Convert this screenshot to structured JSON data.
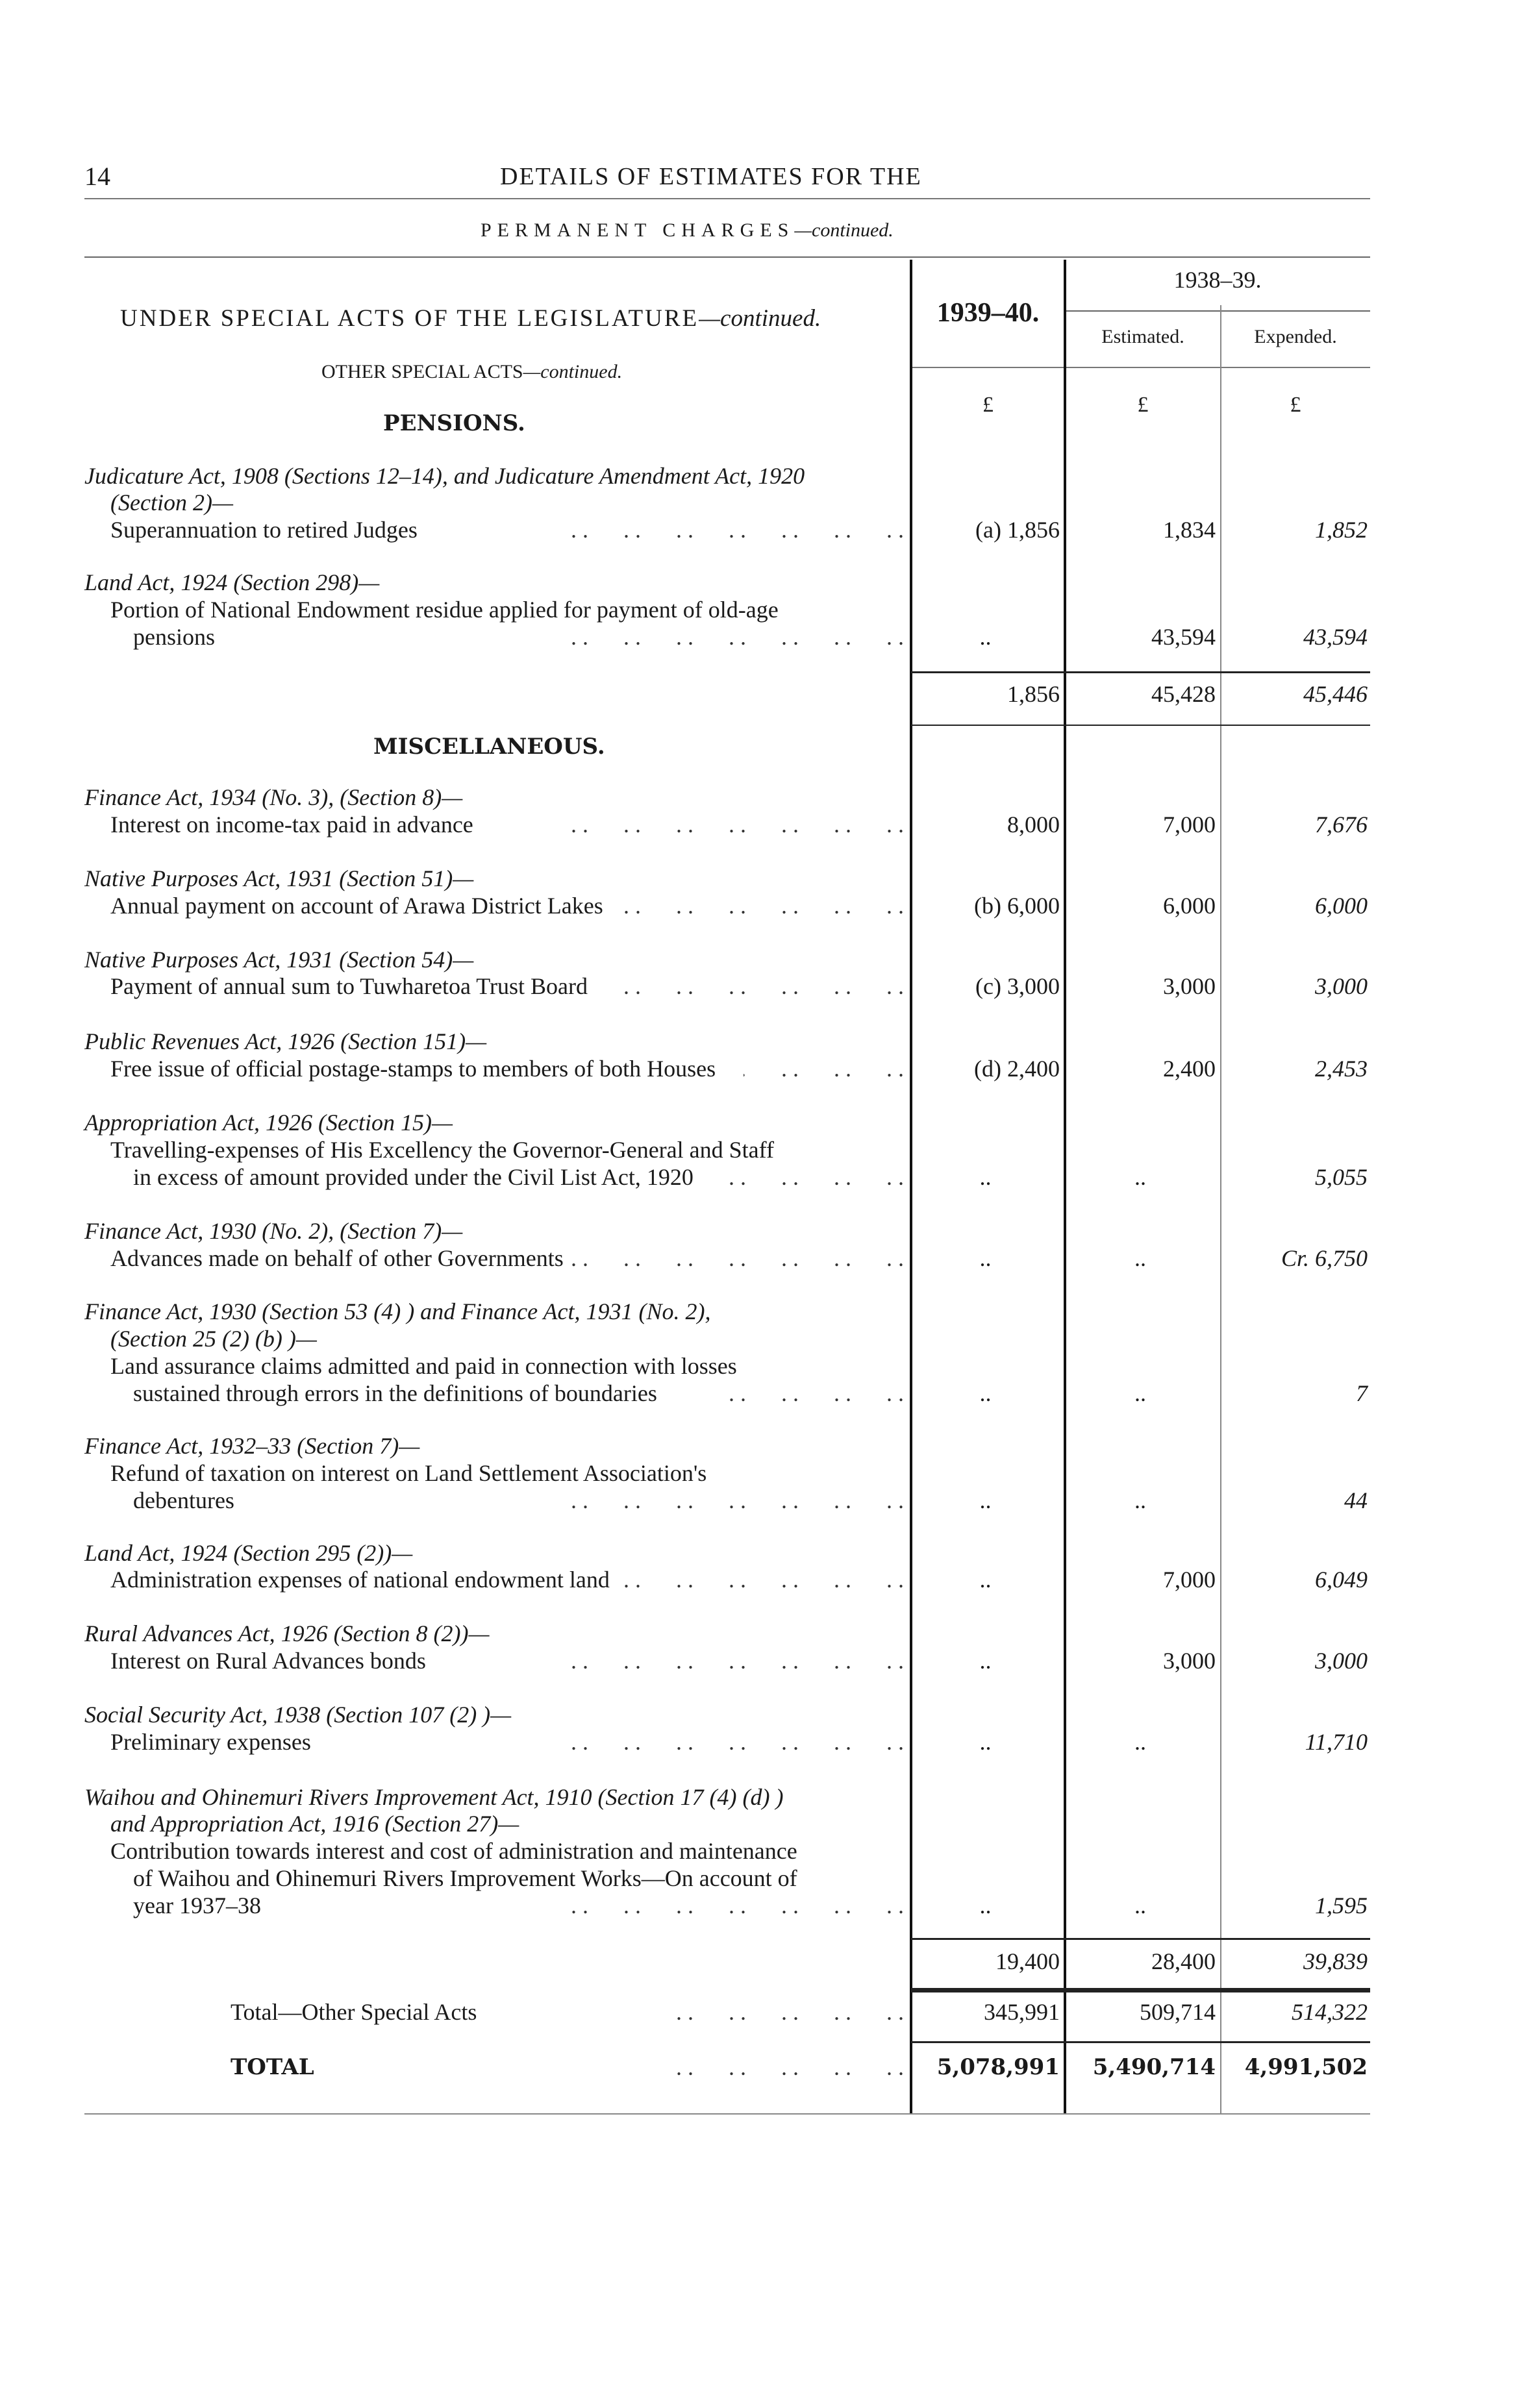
{
  "page": {
    "number": "14",
    "running_title": "DETAILS OF ESTIMATES FOR THE",
    "section_title": "PERMANENT CHARGES",
    "section_suffix": "—continued."
  },
  "table_header": {
    "left_title": "UNDER SPECIAL ACTS OF THE LEGISLATURE",
    "left_title_suffix": "—continued.",
    "col_current": "1939–40.",
    "col_prev_group": "1938–39.",
    "col_estimated": "Estimated.",
    "col_expended": "Expended.",
    "currency": "£",
    "subheading": "OTHER SPECIAL ACTS",
    "subheading_suffix": "—continued."
  },
  "sections": [
    {
      "heading": "PENSIONS."
    },
    {
      "heading": "MISCELLANEOUS."
    }
  ],
  "entries": [
    {
      "act": [
        "Judicature Act, 1908 (Sections 12–14), and Judicature Amendment Act, 1920",
        "(Section 2)—"
      ],
      "desc": [
        "Superannuation to retired Judges"
      ],
      "v1939": "(a) 1,856",
      "est": "1,834",
      "exp": "1,852"
    },
    {
      "act": [
        "Land Act, 1924 (Section 298)—"
      ],
      "desc": [
        "Portion of National Endowment residue applied for payment of old-age",
        "pensions"
      ],
      "v1939": "..",
      "est": "43,594",
      "exp": "43,594"
    },
    {
      "act": [
        "Finance Act, 1934 (No. 3), (Section 8)—"
      ],
      "desc": [
        "Interest on income-tax paid in advance"
      ],
      "v1939": "8,000",
      "est": "7,000",
      "exp": "7,676"
    },
    {
      "act": [
        "Native Purposes Act, 1931 (Section 51)—"
      ],
      "desc": [
        "Annual payment on account of Arawa District Lakes"
      ],
      "v1939": "(b) 6,000",
      "est": "6,000",
      "exp": "6,000"
    },
    {
      "act": [
        "Native Purposes Act, 1931 (Section 54)—"
      ],
      "desc": [
        "Payment of annual sum to Tuwharetoa Trust Board"
      ],
      "v1939": "(c) 3,000",
      "est": "3,000",
      "exp": "3,000"
    },
    {
      "act": [
        "Public Revenues Act, 1926 (Section 151)—"
      ],
      "desc": [
        "Free issue of official postage-stamps to members of both Houses"
      ],
      "v1939": "(d) 2,400",
      "est": "2,400",
      "exp": "2,453"
    },
    {
      "act": [
        "Appropriation Act, 1926 (Section 15)—"
      ],
      "desc": [
        "Travelling-expenses of His Excellency the Governor-General and Staff",
        "in excess of amount provided under the Civil List Act, 1920"
      ],
      "v1939": "..",
      "est": "..",
      "exp": "5,055"
    },
    {
      "act": [
        "Finance Act, 1930 (No. 2), (Section 7)—"
      ],
      "desc": [
        "Advances made on behalf of other Governments"
      ],
      "v1939": "..",
      "est": "..",
      "exp": "Cr. 6,750"
    },
    {
      "act": [
        "Finance Act, 1930 (Section 53 (4) ) and Finance Act, 1931 (No. 2),",
        "(Section 25 (2) (b) )—"
      ],
      "desc": [
        "Land assurance claims admitted and paid in connection with losses",
        "sustained through errors in the definitions of boundaries"
      ],
      "v1939": "..",
      "est": "..",
      "exp": "7"
    },
    {
      "act": [
        "Finance Act, 1932–33 (Section 7)—"
      ],
      "desc": [
        "Refund of taxation on interest on Land Settlement Association's",
        "debentures"
      ],
      "v1939": "..",
      "est": "..",
      "exp": "44"
    },
    {
      "act": [
        "Land Act, 1924 (Section 295 (2))—"
      ],
      "desc": [
        "Administration expenses of national endowment land"
      ],
      "v1939": "..",
      "est": "7,000",
      "exp": "6,049"
    },
    {
      "act": [
        "Rural Advances Act, 1926 (Section 8 (2))—"
      ],
      "desc": [
        "Interest on Rural Advances bonds"
      ],
      "v1939": "..",
      "est": "3,000",
      "exp": "3,000"
    },
    {
      "act": [
        "Social Security Act, 1938 (Section 107 (2) )—"
      ],
      "desc": [
        "Preliminary expenses"
      ],
      "v1939": "..",
      "est": "..",
      "exp": "11,710"
    },
    {
      "act": [
        "Waihou and Ohinemuri Rivers Improvement Act, 1910 (Section 17 (4) (d) )",
        "and Appropriation Act, 1916 (Section 27)—"
      ],
      "desc": [
        "Contribution towards interest and cost of administration and maintenance",
        "of Waihou and Ohinemuri Rivers Improvement Works—On account of",
        "year 1937–38"
      ],
      "v1939": "..",
      "est": "..",
      "exp": "1,595"
    }
  ],
  "subtotals": [
    {
      "v1939": "1,856",
      "est": "45,428",
      "exp": "45,446"
    },
    {
      "v1939": "19,400",
      "est": "28,400",
      "exp": "39,839"
    }
  ],
  "totals": [
    {
      "label": "Total—Other Special Acts",
      "v1939": "345,991",
      "est": "509,714",
      "exp": "514,322"
    },
    {
      "label": "TOTAL",
      "v1939": "5,078,991",
      "est": "5,490,714",
      "exp": "4,991,502"
    }
  ]
}
